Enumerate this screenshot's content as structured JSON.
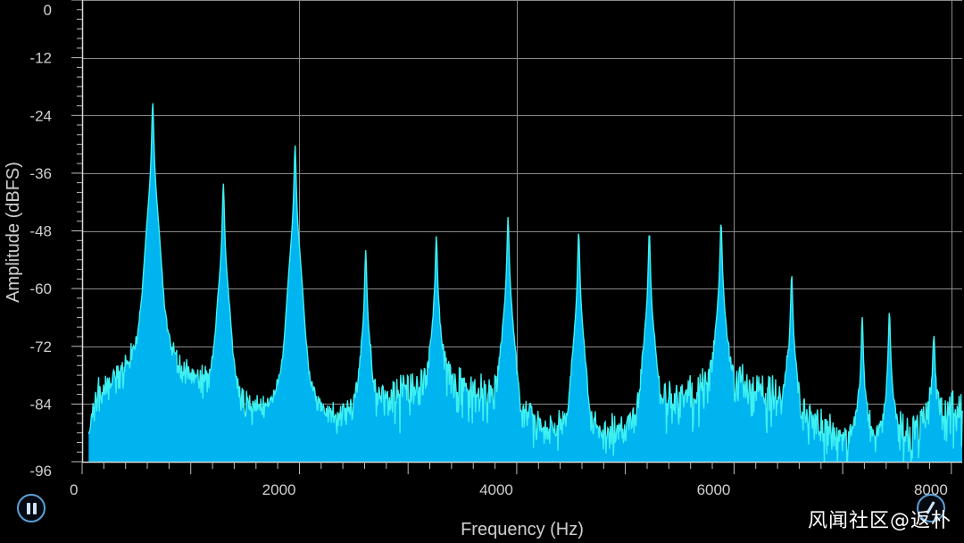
{
  "watermark": "风闻社区@返朴",
  "colors": {
    "background": "#000000",
    "grid": "#8a8a8a",
    "spectrum_fill": "#00b4f0",
    "spectrum_line": "#3ff0f0",
    "axis_text": "#cfcfcf"
  },
  "icons": {
    "pause": "pause-icon",
    "corner": "rotate-icon"
  },
  "chart_data": {
    "type": "area",
    "title": "",
    "xlabel": "Frequency (Hz)",
    "ylabel": "Amplitude (dBFS)",
    "xlim": [
      0,
      8100
    ],
    "ylim": [
      -96,
      0
    ],
    "x_ticks": [
      0,
      2000,
      4000,
      6000,
      8000
    ],
    "y_ticks": [
      0,
      -12,
      -24,
      -36,
      -48,
      -60,
      -72,
      -84,
      -96
    ],
    "grid": true,
    "noise_floor_db": -84,
    "peaks": [
      {
        "freq": 650,
        "db": -22
      },
      {
        "freq": 1300,
        "db": -39
      },
      {
        "freq": 1960,
        "db": -31
      },
      {
        "freq": 2610,
        "db": -53
      },
      {
        "freq": 3260,
        "db": -50
      },
      {
        "freq": 3920,
        "db": -46
      },
      {
        "freq": 4570,
        "db": -49
      },
      {
        "freq": 5220,
        "db": -49
      },
      {
        "freq": 5880,
        "db": -47
      },
      {
        "freq": 6530,
        "db": -58
      },
      {
        "freq": 7180,
        "db": -67
      },
      {
        "freq": 7430,
        "db": -66
      },
      {
        "freq": 7840,
        "db": -71
      }
    ]
  }
}
